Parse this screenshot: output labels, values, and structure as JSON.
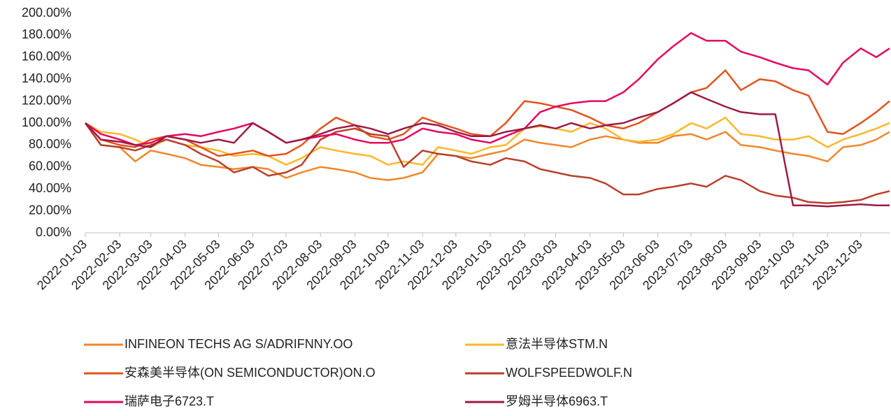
{
  "chart_data": {
    "type": "line",
    "x": [
      "2022-01-03",
      "2022-01-17",
      "2022-02-03",
      "2022-02-17",
      "2022-03-03",
      "2022-03-17",
      "2022-04-03",
      "2022-04-17",
      "2022-05-03",
      "2022-05-17",
      "2022-06-03",
      "2022-06-17",
      "2022-07-03",
      "2022-07-17",
      "2022-08-03",
      "2022-08-17",
      "2022-09-03",
      "2022-09-17",
      "2022-10-03",
      "2022-10-17",
      "2022-11-03",
      "2022-11-17",
      "2022-12-03",
      "2022-12-17",
      "2023-01-03",
      "2023-01-17",
      "2023-02-03",
      "2023-02-17",
      "2023-03-03",
      "2023-03-17",
      "2023-04-03",
      "2023-04-17",
      "2023-05-03",
      "2023-05-17",
      "2023-06-03",
      "2023-06-17",
      "2023-07-03",
      "2023-07-17",
      "2023-08-03",
      "2023-08-17",
      "2023-09-03",
      "2023-09-17",
      "2023-10-03",
      "2023-10-17",
      "2023-11-03",
      "2023-11-17",
      "2023-12-03",
      "2023-12-17",
      "2023-12-29"
    ],
    "series": [
      {
        "name": "INFINEON TECHS AG S/ADRIFNNY.OO",
        "color": "#f0862a",
        "values": [
          100,
          80,
          78,
          65,
          75,
          72,
          68,
          62,
          60,
          58,
          60,
          58,
          50,
          55,
          60,
          58,
          55,
          50,
          48,
          50,
          55,
          72,
          70,
          68,
          72,
          75,
          85,
          82,
          80,
          78,
          85,
          88,
          85,
          82,
          82,
          88,
          90,
          85,
          92,
          80,
          78,
          75,
          72,
          70,
          65,
          78,
          80,
          85,
          92
        ]
      },
      {
        "name": "意法半导体STM.N",
        "color": "#fbb829",
        "values": [
          100,
          92,
          90,
          85,
          78,
          85,
          80,
          78,
          75,
          70,
          72,
          70,
          62,
          68,
          78,
          75,
          72,
          70,
          62,
          65,
          62,
          78,
          75,
          72,
          78,
          80,
          95,
          97,
          95,
          92,
          100,
          95,
          85,
          83,
          85,
          90,
          100,
          95,
          105,
          90,
          88,
          85,
          85,
          88,
          78,
          85,
          90,
          95,
          100
        ]
      },
      {
        "name": "安森美半导体(ON SEMICONDUCTOR)ON.O",
        "color": "#e2531f",
        "values": [
          100,
          85,
          80,
          78,
          85,
          88,
          85,
          78,
          70,
          72,
          75,
          70,
          72,
          80,
          95,
          105,
          98,
          88,
          85,
          90,
          105,
          100,
          95,
          90,
          88,
          100,
          120,
          118,
          115,
          112,
          105,
          98,
          95,
          100,
          110,
          118,
          128,
          132,
          148,
          130,
          140,
          138,
          130,
          125,
          92,
          90,
          100,
          110,
          120
        ]
      },
      {
        "name": "WOLFSPEEDWOLF.N",
        "color": "#b8402c",
        "values": [
          100,
          80,
          78,
          75,
          80,
          85,
          80,
          72,
          65,
          55,
          60,
          52,
          55,
          62,
          85,
          92,
          95,
          90,
          88,
          60,
          75,
          72,
          70,
          65,
          62,
          68,
          65,
          58,
          55,
          52,
          50,
          45,
          35,
          35,
          40,
          42,
          45,
          42,
          52,
          48,
          38,
          34,
          32,
          28,
          27,
          28,
          30,
          35,
          38
        ]
      },
      {
        "name": "瑞萨电子6723.T",
        "color": "#e4075e",
        "values": [
          100,
          90,
          85,
          80,
          82,
          88,
          90,
          88,
          92,
          95,
          100,
          92,
          82,
          85,
          88,
          90,
          85,
          82,
          82,
          85,
          95,
          92,
          90,
          85,
          82,
          88,
          95,
          110,
          115,
          118,
          120,
          120,
          128,
          140,
          158,
          170,
          182,
          175,
          175,
          165,
          160,
          155,
          150,
          148,
          135,
          155,
          168,
          160,
          168
        ]
      },
      {
        "name": "罗姆半导体6963.T",
        "color": "#9c1b48",
        "values": [
          100,
          85,
          83,
          80,
          78,
          88,
          85,
          82,
          85,
          82,
          100,
          92,
          82,
          85,
          90,
          95,
          98,
          95,
          90,
          95,
          100,
          98,
          92,
          88,
          88,
          92,
          95,
          98,
          95,
          100,
          95,
          98,
          100,
          105,
          110,
          118,
          128,
          122,
          115,
          110,
          108,
          108,
          25,
          25,
          24,
          25,
          26,
          25,
          25
        ]
      }
    ],
    "xlim": [
      "2022-01-03",
      "2023-12-29"
    ],
    "xticks": [
      "2022-01-03",
      "2022-02-03",
      "2022-03-03",
      "2022-04-03",
      "2022-05-03",
      "2022-06-03",
      "2022-07-03",
      "2022-08-03",
      "2022-09-03",
      "2022-10-03",
      "2022-11-03",
      "2022-12-03",
      "2023-01-03",
      "2023-02-03",
      "2023-03-03",
      "2023-04-03",
      "2023-05-03",
      "2023-06-03",
      "2023-07-03",
      "2023-08-03",
      "2023-09-03",
      "2023-10-03",
      "2023-11-03",
      "2023-12-03"
    ],
    "ylim": [
      0,
      200
    ],
    "yticks": [
      {
        "value": 0,
        "label": "0.00%"
      },
      {
        "value": 20,
        "label": "20.00%"
      },
      {
        "value": 40,
        "label": "40.00%"
      },
      {
        "value": 60,
        "label": "60.00%"
      },
      {
        "value": 80,
        "label": "80.00%"
      },
      {
        "value": 100,
        "label": "100.00%"
      },
      {
        "value": 120,
        "label": "120.00%"
      },
      {
        "value": 140,
        "label": "140.00%"
      },
      {
        "value": 160,
        "label": "160.00%"
      },
      {
        "value": 180,
        "label": "180.00%"
      },
      {
        "value": 200,
        "label": "200.00%"
      }
    ]
  }
}
